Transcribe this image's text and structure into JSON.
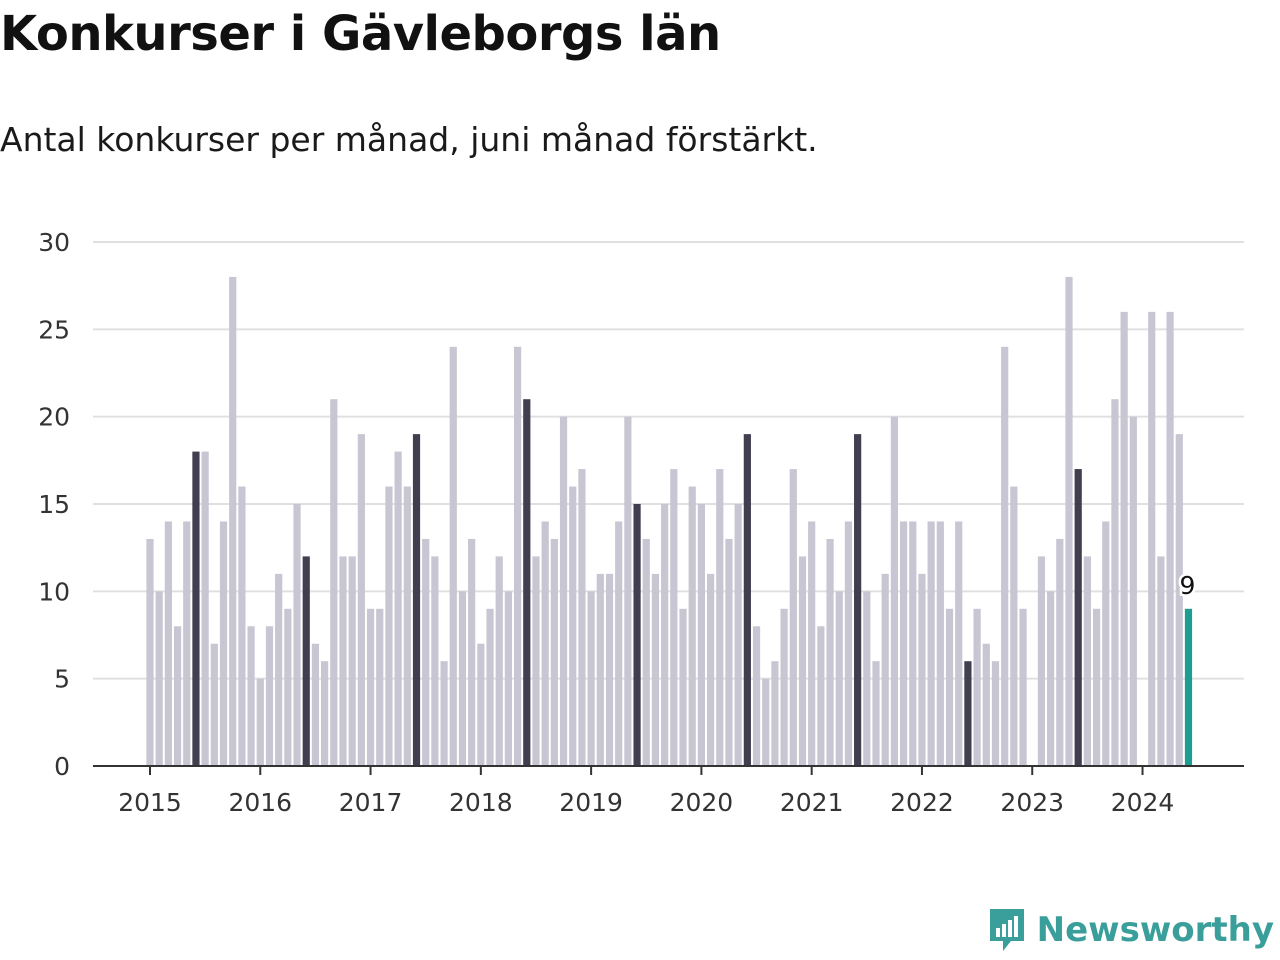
{
  "brand": {
    "name": "Newsworthy",
    "colors": {
      "normal": "#c8c6d2",
      "june": "#403e4f",
      "latest": "#1b9e8f",
      "grid": "#e0e0e0",
      "axis": "#333333",
      "logo": "#3a9e9a"
    }
  },
  "chart_data": {
    "type": "bar",
    "title": "Konkurser i Gävleborgs län",
    "subtitle": "Antal konkurser per månad, juni månad förstärkt.",
    "xlabel": "",
    "ylabel": "",
    "ylim": [
      0,
      30
    ],
    "yticks": [
      0,
      5,
      10,
      15,
      20,
      25,
      30
    ],
    "start_month": "2015-01",
    "end_month": "2024-06",
    "x_ticks": [
      "2015",
      "2016",
      "2017",
      "2018",
      "2019",
      "2020",
      "2021",
      "2022",
      "2023",
      "2024"
    ],
    "highlight": "juni",
    "grid": true,
    "legend": "none",
    "data_labels": [
      {
        "month": "2024-06",
        "text": "9"
      }
    ],
    "values": [
      13,
      10,
      14,
      8,
      14,
      18,
      18,
      7,
      14,
      28,
      16,
      8,
      5,
      8,
      11,
      9,
      15,
      12,
      7,
      6,
      21,
      12,
      12,
      19,
      9,
      9,
      16,
      18,
      16,
      19,
      13,
      12,
      6,
      24,
      10,
      13,
      7,
      9,
      12,
      10,
      24,
      21,
      12,
      14,
      13,
      20,
      16,
      17,
      10,
      11,
      11,
      14,
      20,
      15,
      13,
      11,
      15,
      17,
      9,
      16,
      15,
      11,
      17,
      13,
      15,
      19,
      8,
      5,
      6,
      9,
      17,
      12,
      14,
      8,
      13,
      10,
      14,
      19,
      10,
      6,
      11,
      20,
      14,
      14,
      11,
      14,
      14,
      9,
      14,
      6,
      9,
      7,
      6,
      24,
      16,
      9,
      0,
      12,
      10,
      13,
      28,
      17,
      12,
      9,
      14,
      21,
      26,
      20,
      0,
      26,
      12,
      26,
      19,
      9
    ]
  }
}
